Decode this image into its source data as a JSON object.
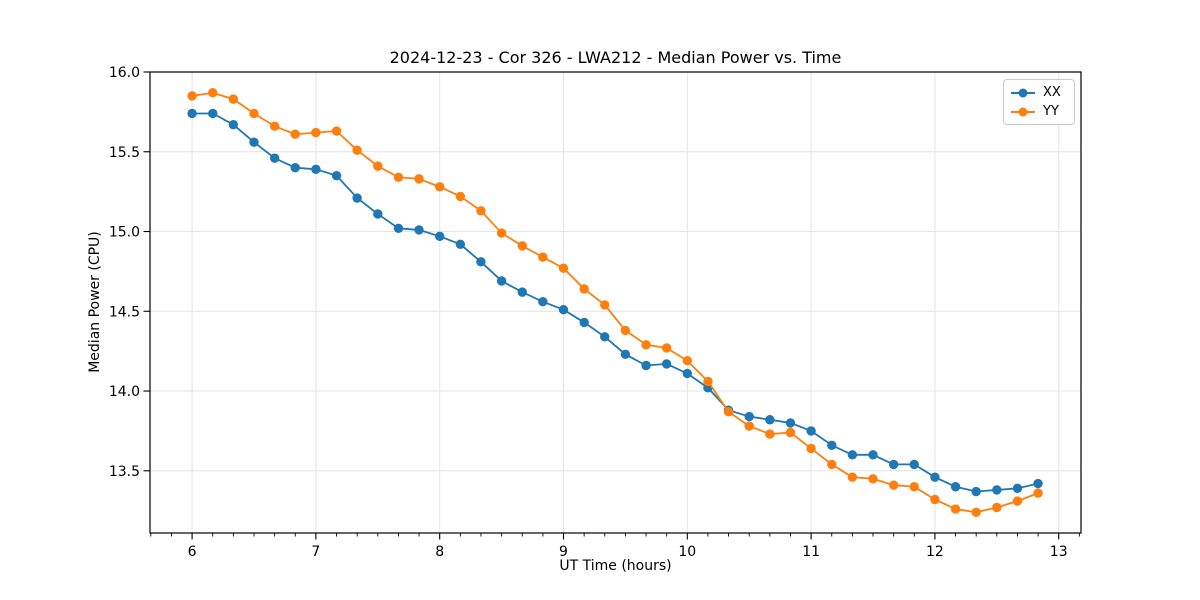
{
  "chart_data": {
    "type": "line",
    "title": "2024-12-23 - Cor 326 - LWA212 - Median Power vs. Time",
    "xlabel": "UT Time (hours)",
    "ylabel": "Median Power (CPU)",
    "xlim": [
      5.66,
      13.18
    ],
    "ylim": [
      13.11,
      16.0
    ],
    "x_ticks": [
      6,
      7,
      8,
      9,
      10,
      11,
      12,
      13
    ],
    "y_ticks": [
      13.5,
      14.0,
      14.5,
      15.0,
      15.5,
      16.0
    ],
    "x_minor_divisions_per_major": 6,
    "grid": true,
    "grid_color": "#e4e4e4",
    "legend_position": "upper right",
    "marker": "circle",
    "x": [
      6.0,
      6.167,
      6.333,
      6.5,
      6.667,
      6.833,
      7.0,
      7.167,
      7.333,
      7.5,
      7.667,
      7.833,
      8.0,
      8.167,
      8.333,
      8.5,
      8.667,
      8.833,
      9.0,
      9.167,
      9.333,
      9.5,
      9.667,
      9.833,
      10.0,
      10.167,
      10.333,
      10.5,
      10.667,
      10.833,
      11.0,
      11.167,
      11.333,
      11.5,
      11.667,
      11.833,
      12.0,
      12.167,
      12.333,
      12.5,
      12.667,
      12.833
    ],
    "series": [
      {
        "name": "XX",
        "color": "#1f77b4",
        "values": [
          15.74,
          15.74,
          15.67,
          15.56,
          15.46,
          15.4,
          15.39,
          15.35,
          15.21,
          15.11,
          15.02,
          15.01,
          14.97,
          14.92,
          14.81,
          14.69,
          14.62,
          14.56,
          14.51,
          14.43,
          14.34,
          14.23,
          14.16,
          14.17,
          14.11,
          14.02,
          13.88,
          13.84,
          13.82,
          13.8,
          13.75,
          13.66,
          13.6,
          13.6,
          13.54,
          13.54,
          13.46,
          13.4,
          13.37,
          13.38,
          13.39,
          13.42
        ]
      },
      {
        "name": "YY",
        "color": "#ff7f0e",
        "values": [
          15.85,
          15.87,
          15.83,
          15.74,
          15.66,
          15.61,
          15.62,
          15.63,
          15.51,
          15.41,
          15.34,
          15.33,
          15.28,
          15.22,
          15.13,
          14.99,
          14.91,
          14.84,
          14.77,
          14.64,
          14.54,
          14.38,
          14.29,
          14.27,
          14.19,
          14.06,
          13.87,
          13.78,
          13.73,
          13.74,
          13.64,
          13.54,
          13.46,
          13.45,
          13.41,
          13.4,
          13.32,
          13.26,
          13.24,
          13.27,
          13.31,
          13.36
        ]
      }
    ]
  }
}
